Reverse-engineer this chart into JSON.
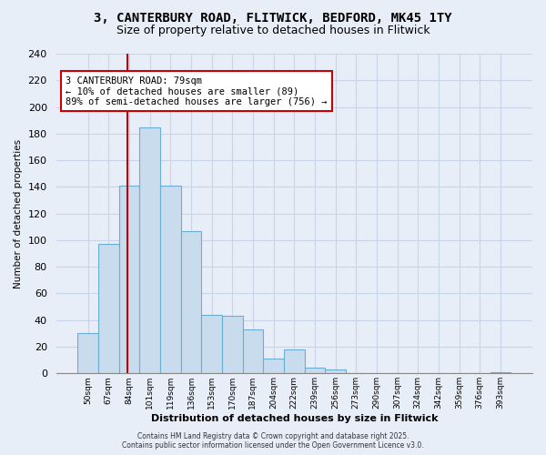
{
  "title": "3, CANTERBURY ROAD, FLITWICK, BEDFORD, MK45 1TY",
  "subtitle": "Size of property relative to detached houses in Flitwick",
  "xlabel": "Distribution of detached houses by size in Flitwick",
  "ylabel": "Number of detached properties",
  "bar_labels": [
    "50sqm",
    "67sqm",
    "84sqm",
    "101sqm",
    "119sqm",
    "136sqm",
    "153sqm",
    "170sqm",
    "187sqm",
    "204sqm",
    "222sqm",
    "239sqm",
    "256sqm",
    "273sqm",
    "290sqm",
    "307sqm",
    "324sqm",
    "342sqm",
    "359sqm",
    "376sqm",
    "393sqm"
  ],
  "bar_values": [
    30,
    97,
    141,
    185,
    141,
    107,
    44,
    43,
    33,
    11,
    18,
    4,
    3,
    0,
    0,
    0,
    0,
    0,
    0,
    0,
    1
  ],
  "bar_color": "#c8dcee",
  "bar_edge_color": "#6aaed6",
  "vline_x_index": 1.92,
  "vline_color": "#cc0000",
  "ylim": [
    0,
    240
  ],
  "yticks": [
    0,
    20,
    40,
    60,
    80,
    100,
    120,
    140,
    160,
    180,
    200,
    220,
    240
  ],
  "annotation_title": "3 CANTERBURY ROAD: 79sqm",
  "annotation_line1": "← 10% of detached houses are smaller (89)",
  "annotation_line2": "89% of semi-detached houses are larger (756) →",
  "annotation_box_color": "#ffffff",
  "annotation_box_edge": "#cc0000",
  "footer1": "Contains HM Land Registry data © Crown copyright and database right 2025.",
  "footer2": "Contains public sector information licensed under the Open Government Licence v3.0.",
  "background_color": "#e8eef8",
  "grid_color": "#c8d4e8",
  "title_fontsize": 10,
  "subtitle_fontsize": 9,
  "bar_width": 1.0
}
